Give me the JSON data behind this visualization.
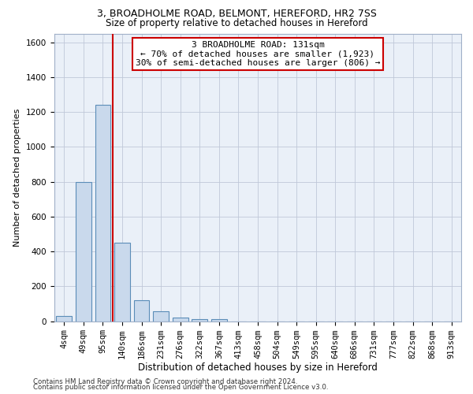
{
  "title1": "3, BROADHOLME ROAD, BELMONT, HEREFORD, HR2 7SS",
  "title2": "Size of property relative to detached houses in Hereford",
  "xlabel": "Distribution of detached houses by size in Hereford",
  "ylabel": "Number of detached properties",
  "categories": [
    "4sqm",
    "49sqm",
    "95sqm",
    "140sqm",
    "186sqm",
    "231sqm",
    "276sqm",
    "322sqm",
    "367sqm",
    "413sqm",
    "458sqm",
    "504sqm",
    "549sqm",
    "595sqm",
    "640sqm",
    "686sqm",
    "731sqm",
    "777sqm",
    "822sqm",
    "868sqm",
    "913sqm"
  ],
  "values": [
    30,
    800,
    1240,
    450,
    120,
    55,
    20,
    12,
    10,
    0,
    0,
    0,
    0,
    0,
    0,
    0,
    0,
    0,
    0,
    0,
    0
  ],
  "bar_color": "#c9d9ec",
  "bar_edge_color": "#5b8db8",
  "grid_color": "#c0c8d8",
  "background_color": "#eaf0f8",
  "red_line_x": 2.5,
  "annotation_line1": "3 BROADHOLME ROAD: 131sqm",
  "annotation_line2": "← 70% of detached houses are smaller (1,923)",
  "annotation_line3": "30% of semi-detached houses are larger (806) →",
  "annotation_box_color": "#ffffff",
  "annotation_box_edge": "#cc0000",
  "ylim": [
    0,
    1650
  ],
  "yticks": [
    0,
    200,
    400,
    600,
    800,
    1000,
    1200,
    1400,
    1600
  ],
  "footer1": "Contains HM Land Registry data © Crown copyright and database right 2024.",
  "footer2": "Contains public sector information licensed under the Open Government Licence v3.0.",
  "title1_fontsize": 9,
  "title2_fontsize": 8.5,
  "ylabel_fontsize": 8,
  "xlabel_fontsize": 8.5,
  "tick_fontsize": 7.5,
  "annot_fontsize": 8
}
